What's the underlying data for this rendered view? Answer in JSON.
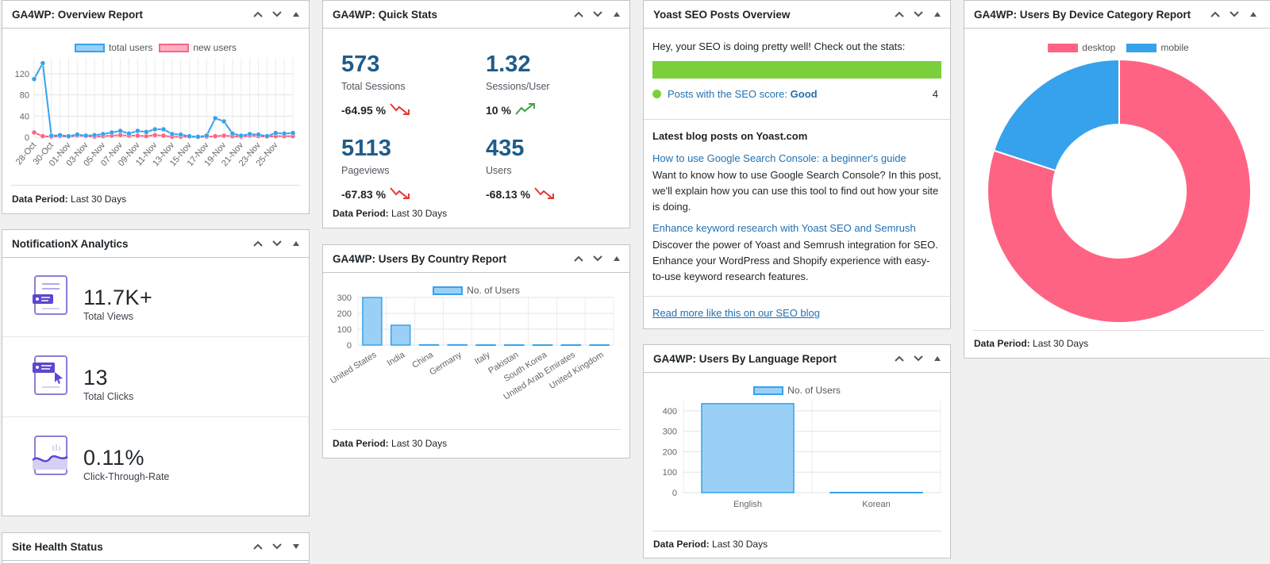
{
  "controls": {
    "up": "⌃",
    "down": "⌄",
    "toggle": "▲"
  },
  "overview": {
    "title": "GA4WP: Overview Report",
    "period_label": "Data Period:",
    "period_value": "Last 30 Days",
    "chart_data": {
      "type": "line",
      "x": [
        "28-Oct",
        "29-Oct",
        "30-Oct",
        "31-Oct",
        "01-Nov",
        "02-Nov",
        "03-Nov",
        "04-Nov",
        "05-Nov",
        "06-Nov",
        "07-Nov",
        "08-Nov",
        "09-Nov",
        "10-Nov",
        "11-Nov",
        "12-Nov",
        "13-Nov",
        "14-Nov",
        "15-Nov",
        "16-Nov",
        "17-Nov",
        "18-Nov",
        "19-Nov",
        "20-Nov",
        "21-Nov",
        "22-Nov",
        "23-Nov",
        "24-Nov",
        "25-Nov",
        "26-Nov",
        "27-Nov"
      ],
      "tick_labels": [
        "28-Oct",
        "30-Oct",
        "01-Nov",
        "03-Nov",
        "05-Nov",
        "07-Nov",
        "09-Nov",
        "11-Nov",
        "13-Nov",
        "15-Nov",
        "17-Nov",
        "19-Nov",
        "21-Nov",
        "23-Nov",
        "25-Nov"
      ],
      "series": [
        {
          "name": "total users",
          "color": "#36a2eb",
          "values": [
            110,
            140,
            3,
            4,
            2,
            5,
            3,
            4,
            6,
            9,
            12,
            7,
            12,
            10,
            15,
            15,
            6,
            5,
            2,
            1,
            3,
            36,
            30,
            7,
            3,
            6,
            5,
            2,
            8,
            7,
            8
          ]
        },
        {
          "name": "new users",
          "color": "#ff6384",
          "values": [
            9,
            2,
            1,
            2,
            1,
            3,
            2,
            1,
            2,
            3,
            4,
            3,
            3,
            2,
            4,
            3,
            1,
            1,
            1,
            0,
            1,
            2,
            3,
            2,
            1,
            3,
            2,
            1,
            2,
            2,
            2
          ]
        }
      ],
      "yticks": [
        0,
        40,
        80,
        120
      ],
      "ylim": [
        0,
        150
      ],
      "grid": true,
      "legend": "top-center"
    }
  },
  "quickstats": {
    "title": "GA4WP: Quick Stats",
    "period_label": "Data Period:",
    "period_value": "Last 30 Days",
    "items": [
      {
        "value": "573",
        "label": "Total Sessions",
        "pct": "-64.95 %",
        "trend": "down"
      },
      {
        "value": "1.32",
        "label": "Sessions/User",
        "pct": "10 %",
        "trend": "up"
      },
      {
        "value": "5113",
        "label": "Pageviews",
        "pct": "-67.83 %",
        "trend": "down"
      },
      {
        "value": "435",
        "label": "Users",
        "pct": "-68.13 %",
        "trend": "down"
      }
    ]
  },
  "country": {
    "title": "GA4WP: Users By Country Report",
    "period_label": "Data Period:",
    "period_value": "Last 30 Days",
    "chart_data": {
      "type": "bar",
      "categories": [
        "United States",
        "India",
        "China",
        "Germany",
        "Italy",
        "Pakistan",
        "South Korea",
        "United Arab Emirates",
        "United Kingdom"
      ],
      "series": [
        {
          "name": "No. of Users",
          "values": [
            300,
            125,
            2,
            2,
            1,
            1,
            1,
            1,
            1
          ]
        }
      ],
      "yticks": [
        0,
        100,
        200,
        300
      ],
      "ylim": [
        0,
        300
      ],
      "grid": true,
      "legend": "top-center"
    }
  },
  "yoast": {
    "title": "Yoast SEO Posts Overview",
    "intro": "Hey, your SEO is doing pretty well! Check out the stats:",
    "bar_color": "#7ad03a",
    "bar_fraction": 1.0,
    "score_text": "Posts with the SEO score:",
    "score_value": "Good",
    "score_count": "4",
    "latest_heading": "Latest blog posts on Yoast.com",
    "posts": [
      {
        "title": "How to use Google Search Console: a beginner's guide",
        "desc": "Want to know how to use Google Search Console? In this post, we'll explain how you can use this tool to find out how your site is doing."
      },
      {
        "title": "Enhance keyword research with Yoast SEO and Semrush",
        "desc": "Discover the power of Yoast and Semrush integration for SEO. Enhance your WordPress and Shopify experience with easy-to-use keyword research features."
      }
    ],
    "read_more": "Read more like this on our SEO blog"
  },
  "language": {
    "title": "GA4WP: Users By Language Report",
    "period_label": "Data Period:",
    "period_value": "Last 30 Days",
    "chart_data": {
      "type": "bar",
      "categories": [
        "English",
        "Korean"
      ],
      "series": [
        {
          "name": "No. of Users",
          "values": [
            435,
            1
          ]
        }
      ],
      "yticks": [
        0,
        100,
        200,
        300,
        400
      ],
      "ylim": [
        0,
        450
      ],
      "grid": true,
      "legend": "top-center"
    }
  },
  "device": {
    "title": "GA4WP: Users By Device Category Report",
    "period_label": "Data Period:",
    "period_value": "Last 30 Days",
    "chart_data": {
      "type": "pie",
      "donut": true,
      "categories": [
        "desktop",
        "mobile"
      ],
      "values": [
        80,
        20
      ],
      "colors": [
        "#ff6384",
        "#36a2eb"
      ],
      "legend": "top-center"
    }
  },
  "notificationx": {
    "title": "NotificationX Analytics",
    "stats": [
      {
        "value": "11.7K+",
        "label": "Total Views",
        "icon": "views-icon"
      },
      {
        "value": "13",
        "label": "Total Clicks",
        "icon": "clicks-icon"
      },
      {
        "value": "0.11%",
        "label": "Click-Through-Rate",
        "icon": "ctr-icon"
      }
    ]
  },
  "sitehealth": {
    "title": "Site Health Status"
  }
}
